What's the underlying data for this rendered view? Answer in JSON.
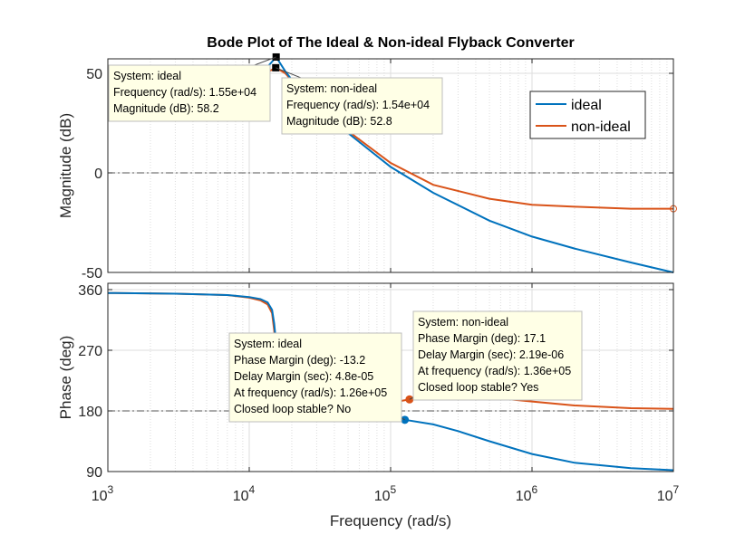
{
  "title": "Bode Plot of The Ideal & Non-ideal Flyback Converter",
  "xlabel": "Frequency  (rad/s)",
  "colors": {
    "ideal": "#0072BD",
    "non_ideal": "#D95319",
    "tip_bg": "#FFFFE6",
    "grid": "#DDDDDD"
  },
  "chart_data": [
    {
      "type": "line",
      "panel": "magnitude",
      "title": "Bode Plot of The Ideal & Non-ideal Flyback Converter",
      "xlabel": "Frequency  (rad/s)",
      "ylabel": "Magnitude (dB)",
      "xscale": "log",
      "xlim": [
        1000,
        10000000
      ],
      "ylim": [
        -50,
        60
      ],
      "grid": true,
      "legend": {
        "location": "top-right",
        "entries": [
          "ideal",
          "non-ideal"
        ]
      },
      "xticks": [
        {
          "base": "10",
          "exp": "3"
        },
        {
          "base": "10",
          "exp": "4"
        },
        {
          "base": "10",
          "exp": "5"
        },
        {
          "base": "10",
          "exp": "6"
        },
        {
          "base": "10",
          "exp": "7"
        }
      ],
      "yticks": [
        "50",
        "0",
        "-50"
      ],
      "ytick_values": [
        50,
        0,
        -50
      ],
      "reference_line": 0,
      "series": [
        {
          "name": "ideal",
          "x": [
            1000,
            2000,
            4000,
            7000,
            10000,
            13000,
            15500,
            18000,
            22000,
            30000,
            50000,
            100000,
            200000,
            500000,
            1000000,
            2000000,
            5000000,
            10000000
          ],
          "y": [
            36,
            37,
            38,
            41,
            45,
            52,
            58.2,
            51,
            43,
            32,
            20,
            3,
            -10,
            -24,
            -32,
            -38,
            -45,
            -50
          ]
        },
        {
          "name": "non-ideal",
          "x": [
            1000,
            2000,
            4000,
            7000,
            10000,
            13000,
            15400,
            18000,
            22000,
            30000,
            50000,
            100000,
            200000,
            500000,
            1000000,
            2000000,
            5000000,
            10000000
          ],
          "y": [
            36,
            37,
            38,
            41,
            45,
            50,
            52.8,
            50,
            43,
            33,
            21,
            5,
            -6,
            -13,
            -16,
            -17,
            -18,
            -18
          ]
        }
      ],
      "annotations": [
        {
          "lines": [
            "System: ideal",
            "Frequency (rad/s): 1.55e+04",
            "Magnitude (dB): 58.2"
          ]
        },
        {
          "lines": [
            "System: non-ideal",
            "Frequency (rad/s): 1.54e+04",
            "Magnitude (dB): 52.8"
          ]
        }
      ]
    },
    {
      "type": "line",
      "panel": "phase",
      "ylabel": "Phase (deg)",
      "xlabel": "Frequency  (rad/s)",
      "xscale": "log",
      "xlim": [
        1000,
        10000000
      ],
      "ylim": [
        90,
        360
      ],
      "grid": true,
      "xticks": [
        {
          "base": "10",
          "exp": "3"
        },
        {
          "base": "10",
          "exp": "4"
        },
        {
          "base": "10",
          "exp": "5"
        },
        {
          "base": "10",
          "exp": "6"
        },
        {
          "base": "10",
          "exp": "7"
        }
      ],
      "yticks": [
        "360",
        "270",
        "180",
        "90"
      ],
      "ytick_values": [
        360,
        270,
        180,
        90
      ],
      "reference_line": 180,
      "series": [
        {
          "name": "ideal",
          "x": [
            1000,
            3000,
            7000,
            10000,
            12000,
            13500,
            14500,
            15000,
            15500,
            16000,
            20000,
            30000,
            50000,
            80000,
            126000,
            200000,
            300000,
            500000,
            1000000,
            2000000,
            5000000,
            10000000
          ],
          "y": [
            355,
            354,
            352,
            349,
            346,
            341,
            330,
            310,
            280,
            236,
            198,
            186,
            179,
            174,
            166.8,
            160,
            150,
            135,
            116,
            103,
            95,
            92
          ]
        },
        {
          "name": "non-ideal",
          "x": [
            1000,
            3000,
            7000,
            10000,
            12000,
            13500,
            14500,
            15000,
            15500,
            16000,
            20000,
            30000,
            50000,
            80000,
            136000,
            200000,
            300000,
            500000,
            1000000,
            2000000,
            5000000,
            10000000
          ],
          "y": [
            355,
            354,
            352,
            348,
            344,
            338,
            325,
            300,
            262,
            228,
            198,
            190,
            186,
            188,
            197.1,
            201,
            202,
            200,
            194,
            188,
            184,
            183
          ]
        }
      ],
      "annotations": [
        {
          "lines": [
            "System: ideal",
            "Phase Margin (deg): -13.2",
            "Delay Margin (sec): 4.8e-05",
            "At frequency (rad/s): 1.26e+05",
            "Closed loop stable? No"
          ]
        },
        {
          "lines": [
            "System: non-ideal",
            "Phase Margin (deg): 17.1",
            "Delay Margin (sec): 2.19e-06",
            "At frequency (rad/s): 1.36e+05",
            "Closed loop stable? Yes"
          ]
        }
      ]
    }
  ]
}
